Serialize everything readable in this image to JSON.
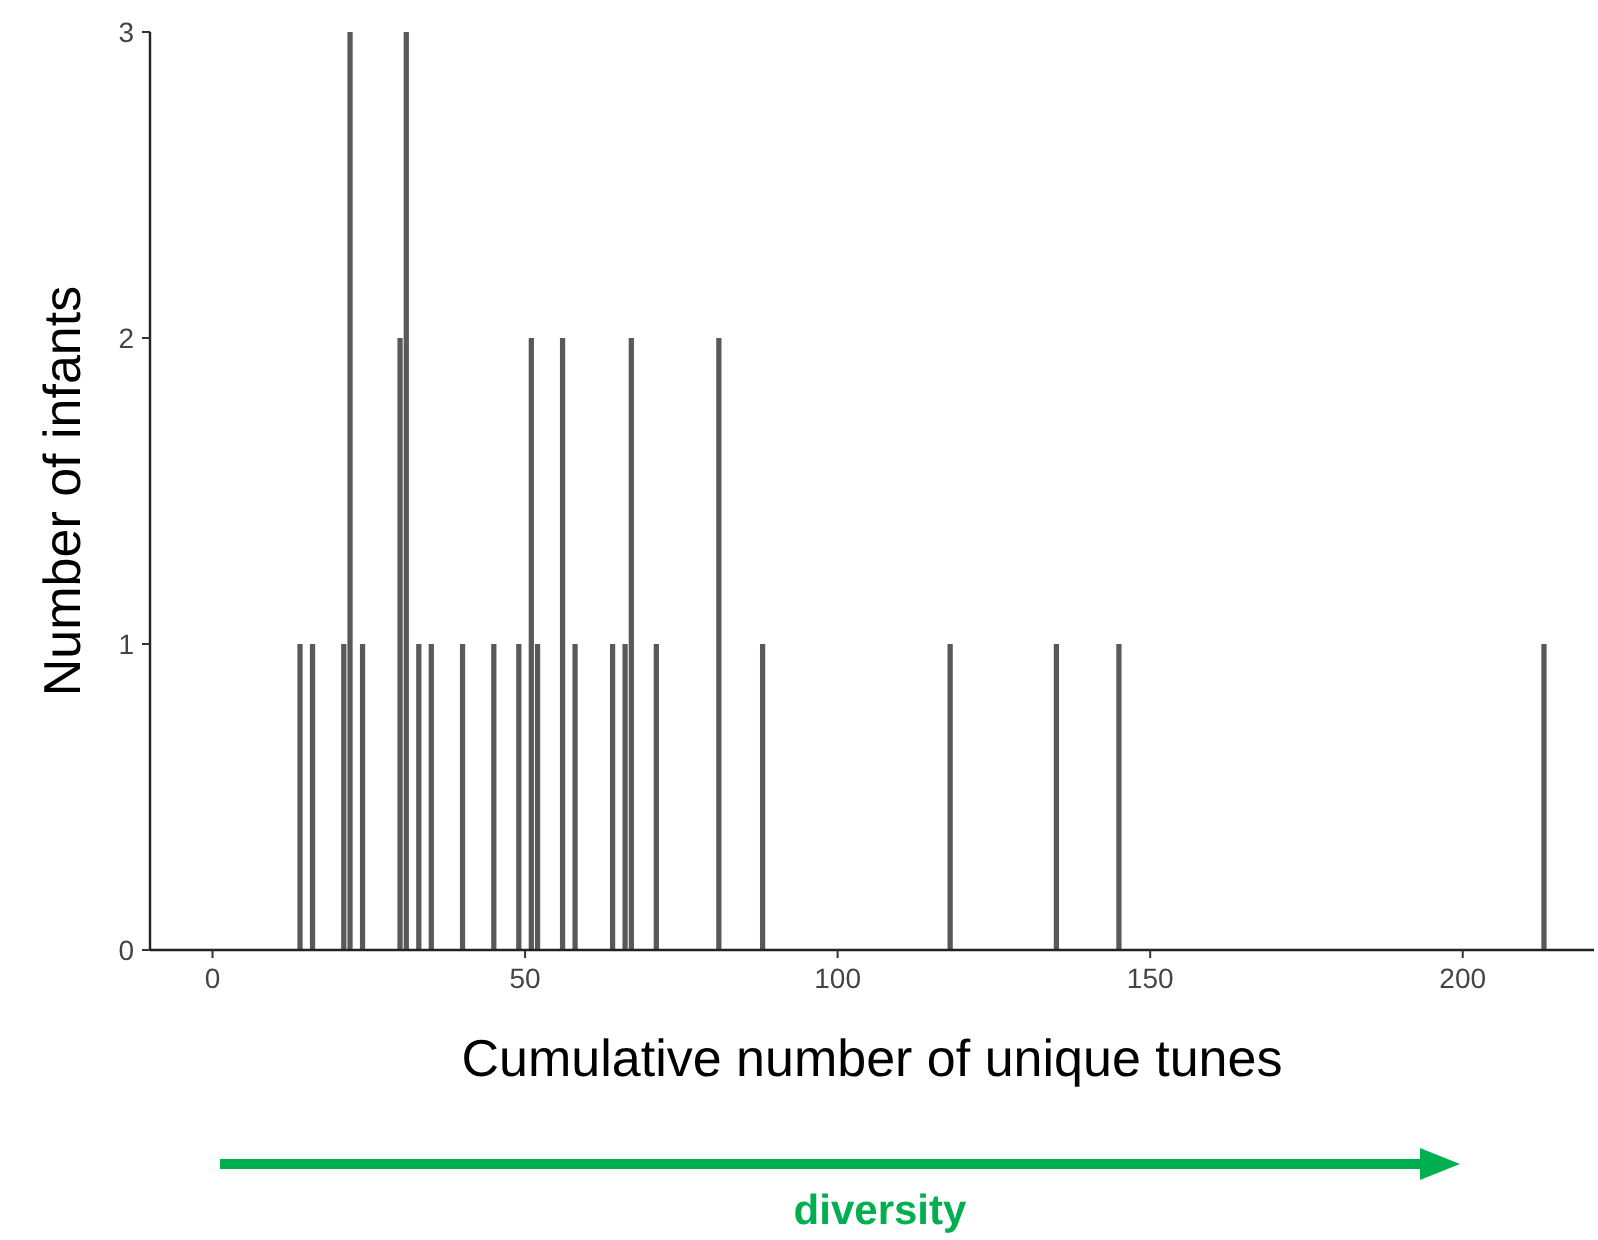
{
  "chart_data": {
    "type": "histogram",
    "xlabel": "Cumulative number of unique tunes",
    "ylabel": "Number of infants",
    "bins": [
      13.5,
      14.5,
      15.5,
      16.5,
      20.5,
      21.5,
      22.5,
      23.5,
      24.5,
      29.5,
      30.5,
      31.5,
      32.5,
      33.5,
      34.5,
      35.5,
      39.5,
      40.5,
      44.5,
      45.5,
      48.5,
      49.5,
      50.5,
      51.5,
      52.5,
      55.5,
      56.5,
      57.5,
      58.5,
      63.5,
      64.5,
      65.5,
      66.5,
      67.5,
      70.5,
      71.5,
      80.5,
      81.5,
      87.5,
      88.5,
      117.5,
      118.5,
      134.5,
      135.5,
      144.5,
      145.5,
      212.5,
      213.5
    ],
    "values": [
      1,
      0,
      1,
      0,
      1,
      3,
      0,
      1,
      0,
      2,
      3,
      0,
      1,
      0,
      1,
      0,
      1,
      0,
      1,
      0,
      1,
      0,
      2,
      1,
      0,
      2,
      0,
      1,
      0,
      1,
      0,
      1,
      2,
      0,
      1,
      0,
      2,
      0,
      1,
      0,
      1,
      0,
      1,
      0,
      1,
      0,
      1
    ],
    "color": "#595959",
    "xlim": [
      -10,
      221
    ],
    "ylim": [
      0,
      3
    ],
    "xticks": [
      0,
      50,
      100,
      150,
      200
    ],
    "yticks": [
      0,
      1,
      2,
      3
    ],
    "grid": false,
    "annotations": [
      "diversity"
    ]
  }
}
